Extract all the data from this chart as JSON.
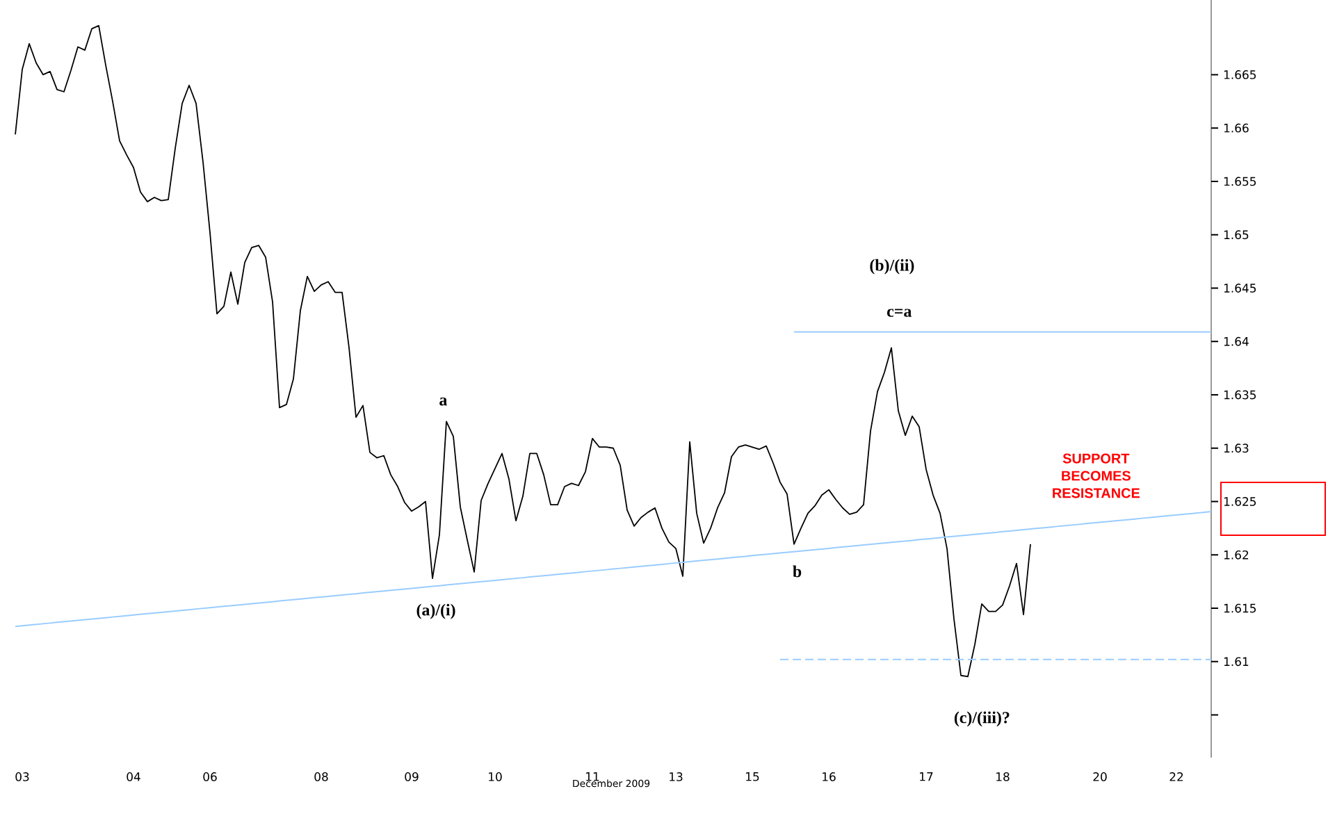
{
  "chart_data": {
    "type": "line",
    "xlabel": "December 2009",
    "categories": [
      null,
      "03",
      null,
      null,
      null,
      null,
      null,
      null,
      null,
      null,
      null,
      null,
      null,
      null,
      null,
      null,
      null,
      "04",
      null,
      null,
      null,
      null,
      null,
      null,
      null,
      null,
      null,
      null,
      "06",
      null,
      null,
      null,
      null,
      null,
      null,
      null,
      null,
      null,
      null,
      null,
      null,
      null,
      null,
      null,
      "08",
      null,
      null,
      null,
      null,
      null,
      null,
      null,
      null,
      null,
      null,
      null,
      null,
      "09",
      null,
      null,
      null,
      null,
      null,
      null,
      null,
      null,
      null,
      null,
      null,
      "10",
      null,
      null,
      null,
      null,
      null,
      null,
      null,
      null,
      null,
      null,
      null,
      null,
      null,
      "11",
      null,
      null,
      null,
      null,
      null,
      null,
      null,
      null,
      null,
      null,
      null,
      "13",
      null,
      null,
      null,
      null,
      null,
      null,
      null,
      null,
      null,
      null,
      "15",
      null,
      null,
      null,
      null,
      null,
      null,
      null,
      null,
      null,
      null,
      "16",
      null,
      null,
      null,
      null,
      null,
      null,
      null,
      null,
      null,
      null,
      null,
      null,
      null,
      "17",
      null,
      null,
      null,
      null,
      null,
      null,
      null,
      null,
      null,
      null,
      "18",
      null,
      null,
      null,
      null,
      null,
      null,
      null,
      null,
      null,
      null,
      null,
      null,
      null,
      "20",
      null,
      null,
      null,
      null,
      null,
      null,
      null,
      null,
      null,
      null,
      "22",
      null,
      null,
      null,
      null,
      null
    ],
    "ylim": [
      1.601,
      1.672
    ],
    "yticks": [
      {
        "value": 1.605,
        "label": null
      },
      1.61,
      1.615,
      1.62,
      1.625,
      1.63,
      1.635,
      1.64,
      1.645,
      1.65,
      1.655,
      1.66,
      1.665
    ],
    "series": [
      {
        "color": "#000000",
        "values": [
          1.6594,
          1.6655,
          1.6679,
          1.6661,
          1.665,
          1.6653,
          1.6636,
          1.6634,
          1.6654,
          1.6676,
          1.6673,
          1.6693,
          1.6696,
          1.6659,
          1.6625,
          1.6588,
          1.6575,
          1.6563,
          1.654,
          1.6531,
          1.6535,
          1.6532,
          1.6533,
          1.6581,
          1.6623,
          1.664,
          1.6623,
          1.6568,
          1.6502,
          1.6426,
          1.6433,
          1.6465,
          1.6435,
          1.6474,
          1.6488,
          1.649,
          1.6479,
          1.6437,
          1.6338,
          1.6341,
          1.6365,
          1.6429,
          1.6461,
          1.6447,
          1.6453,
          1.6456,
          1.6446,
          1.6446,
          1.6394,
          1.6329,
          1.634,
          1.6296,
          1.6291,
          1.6293,
          1.6275,
          1.6264,
          1.6249,
          1.6241,
          1.6245,
          1.625,
          1.6178,
          1.6219,
          1.6325,
          1.6311,
          1.6245,
          1.6214,
          1.6184,
          1.6251,
          1.6267,
          1.6281,
          1.6295,
          1.6271,
          1.6232,
          1.6255,
          1.6295,
          1.6295,
          1.6275,
          1.6247,
          1.6247,
          1.6264,
          1.6267,
          1.6265,
          1.6278,
          1.6309,
          1.6301,
          1.6301,
          1.63,
          1.6284,
          1.6242,
          1.6227,
          1.6235,
          1.624,
          1.6244,
          1.6225,
          1.6212,
          1.6206,
          1.618,
          1.6306,
          1.6239,
          1.6211,
          1.6225,
          1.6244,
          1.6258,
          1.6292,
          1.6301,
          1.6303,
          1.6301,
          1.6299,
          1.6302,
          1.6286,
          1.6268,
          1.6257,
          1.621,
          1.6225,
          1.6239,
          1.6246,
          1.6256,
          1.6261,
          1.6252,
          1.6244,
          1.6238,
          1.624,
          1.6247,
          1.6316,
          1.6353,
          1.6371,
          1.6394,
          1.6335,
          1.6312,
          1.633,
          1.632,
          1.628,
          1.6256,
          1.6239,
          1.6206,
          1.614,
          1.6087,
          1.6086,
          1.6116,
          1.6154,
          1.6147,
          1.6147,
          1.6153,
          1.6171,
          1.6192,
          1.6144,
          1.621,
          null,
          null,
          null,
          null,
          null,
          null,
          null,
          null,
          null,
          null,
          null,
          null,
          null,
          null,
          null,
          null,
          null,
          null,
          null,
          null,
          null,
          null,
          null,
          null,
          null,
          null
        ]
      },
      {
        "color": "#99ccff",
        "values": [
          1.6133,
          1.61336,
          1.61343,
          1.61349,
          1.61355,
          1.61361,
          1.61368,
          1.61374,
          1.6138,
          1.61386,
          1.61393,
          1.61399,
          1.61405,
          1.61411,
          1.61418,
          1.61424,
          1.6143,
          1.61436,
          1.61443,
          1.61449,
          1.61455,
          1.61461,
          1.61468,
          1.61474,
          1.6148,
          1.61486,
          1.61493,
          1.61499,
          1.61505,
          1.61511,
          1.61518,
          1.61524,
          1.6153,
          1.61536,
          1.61543,
          1.61549,
          1.61555,
          1.61561,
          1.61568,
          1.61574,
          1.6158,
          1.61586,
          1.61593,
          1.61599,
          1.61605,
          1.61611,
          1.61618,
          1.61624,
          1.6163,
          1.61636,
          1.61643,
          1.61649,
          1.61655,
          1.61661,
          1.61668,
          1.61674,
          1.6168,
          1.61686,
          1.61693,
          1.61699,
          1.61705,
          1.61711,
          1.61718,
          1.61724,
          1.6173,
          1.61736,
          1.61743,
          1.61749,
          1.61755,
          1.61761,
          1.61768,
          1.61774,
          1.6178,
          1.61786,
          1.61793,
          1.61799,
          1.61805,
          1.61811,
          1.61818,
          1.61824,
          1.6183,
          1.61836,
          1.61843,
          1.61849,
          1.61855,
          1.61861,
          1.61868,
          1.61874,
          1.6188,
          1.61886,
          1.61893,
          1.61899,
          1.61905,
          1.61911,
          1.61918,
          1.61924,
          1.6193,
          1.61936,
          1.61943,
          1.61949,
          1.61955,
          1.61961,
          1.61968,
          1.61974,
          1.6198,
          1.61986,
          1.61993,
          1.61999,
          1.62005,
          1.62011,
          1.62018,
          1.62024,
          1.6203,
          1.62036,
          1.62043,
          1.62049,
          1.62055,
          1.62061,
          1.62068,
          1.62074,
          1.6208,
          1.62086,
          1.62093,
          1.62099,
          1.62105,
          1.62111,
          1.62118,
          1.62124,
          1.6213,
          1.62136,
          1.62143,
          1.62149,
          1.62155,
          1.62161,
          1.62168,
          1.62174,
          1.6218,
          1.62186,
          1.62193,
          1.62199,
          1.62205,
          1.62211,
          1.62218,
          1.62224,
          1.6223,
          1.62236,
          1.62243,
          1.62249,
          1.62255,
          1.62261,
          1.62268,
          1.62274,
          1.6228,
          1.62286,
          1.62293,
          1.62299,
          1.62305,
          1.62311,
          1.62318,
          1.62324,
          1.6233,
          1.62336,
          1.62343,
          1.62349,
          1.62355,
          1.62361,
          1.62368,
          1.62374,
          1.6238,
          1.62386,
          1.62393,
          1.62399,
          1.62405
        ]
      },
      {
        "color": "#99ccff",
        "values": [
          null,
          null,
          null,
          null,
          null,
          null,
          null,
          null,
          null,
          null,
          null,
          null,
          null,
          null,
          null,
          null,
          null,
          null,
          null,
          null,
          null,
          null,
          null,
          null,
          null,
          null,
          null,
          null,
          null,
          null,
          null,
          null,
          null,
          null,
          null,
          null,
          null,
          null,
          null,
          null,
          null,
          null,
          null,
          null,
          null,
          null,
          null,
          null,
          null,
          null,
          null,
          null,
          null,
          null,
          null,
          null,
          null,
          null,
          null,
          null,
          null,
          null,
          null,
          null,
          null,
          null,
          null,
          null,
          null,
          null,
          null,
          null,
          null,
          null,
          null,
          null,
          null,
          null,
          null,
          null,
          null,
          null,
          null,
          null,
          null,
          null,
          null,
          null,
          null,
          null,
          null,
          null,
          null,
          null,
          null,
          null,
          null,
          null,
          null,
          null,
          null,
          null,
          null,
          null,
          null,
          null,
          null,
          null,
          null,
          null,
          null,
          null,
          1.6409,
          1.6409,
          1.6409,
          1.6409,
          1.6409,
          1.6409,
          1.6409,
          1.6409,
          1.6409,
          1.6409,
          1.6409,
          1.6409,
          1.6409,
          1.6409,
          1.6409,
          1.6409,
          1.6409,
          1.6409,
          1.6409,
          1.6409,
          1.6409,
          1.6409,
          1.6409,
          1.6409,
          1.6409,
          1.6409,
          1.6409,
          1.6409,
          1.6409,
          1.6409,
          1.6409,
          1.6409,
          1.6409,
          1.6409,
          1.6409,
          1.6409,
          1.6409,
          1.6409,
          1.6409,
          1.6409,
          1.6409,
          1.6409,
          1.6409,
          1.6409,
          1.6409,
          1.6409,
          1.6409,
          1.6409,
          1.6409,
          1.6409,
          1.6409,
          1.6409,
          1.6409,
          1.6409,
          1.6409,
          1.6409,
          1.6409,
          1.6409,
          1.6409,
          1.6409,
          1.6409
        ]
      },
      {
        "color": "#99ccff",
        "line_style": "dashed",
        "values": [
          null,
          null,
          null,
          null,
          null,
          null,
          null,
          null,
          null,
          null,
          null,
          null,
          null,
          null,
          null,
          null,
          null,
          null,
          null,
          null,
          null,
          null,
          null,
          null,
          null,
          null,
          null,
          null,
          null,
          null,
          null,
          null,
          null,
          null,
          null,
          null,
          null,
          null,
          null,
          null,
          null,
          null,
          null,
          null,
          null,
          null,
          null,
          null,
          null,
          null,
          null,
          null,
          null,
          null,
          null,
          null,
          null,
          null,
          null,
          null,
          null,
          null,
          null,
          null,
          null,
          null,
          null,
          null,
          null,
          null,
          null,
          null,
          null,
          null,
          null,
          null,
          null,
          null,
          null,
          null,
          null,
          null,
          null,
          null,
          null,
          null,
          null,
          null,
          null,
          null,
          null,
          null,
          null,
          null,
          null,
          null,
          null,
          null,
          null,
          null,
          null,
          null,
          null,
          null,
          null,
          null,
          null,
          null,
          null,
          null,
          1.6102,
          1.6102,
          1.6102,
          1.6102,
          1.6102,
          1.6102,
          1.6102,
          1.6102,
          1.6102,
          1.6102,
          1.6102,
          1.6102,
          1.6102,
          1.6102,
          1.6102,
          1.6102,
          1.6102,
          1.6102,
          1.6102,
          1.6102,
          1.6102,
          1.6102,
          1.6102,
          1.6102,
          1.6102,
          1.6102,
          1.6102,
          1.6102,
          1.6102,
          1.6102,
          1.6102,
          1.6102,
          1.6102,
          1.6102,
          1.6102,
          1.6102,
          1.6102,
          1.6102,
          1.6102,
          1.6102,
          1.6102,
          1.6102,
          1.6102,
          1.6102,
          1.6102,
          1.6102,
          1.6102,
          1.6102,
          1.6102,
          1.6102,
          1.6102,
          1.6102,
          1.6102,
          1.6102,
          1.6102,
          1.6102,
          1.6102,
          1.6102,
          1.6102,
          1.6102,
          1.6102,
          1.6102,
          1.6102
        ]
      }
    ],
    "annotations": [
      "a",
      "(a)/(i)",
      "b",
      "(b)/(ii)",
      "c=a",
      "(c)/(iii)?",
      "SUPPORT BECOMES RESISTANCE"
    ]
  }
}
